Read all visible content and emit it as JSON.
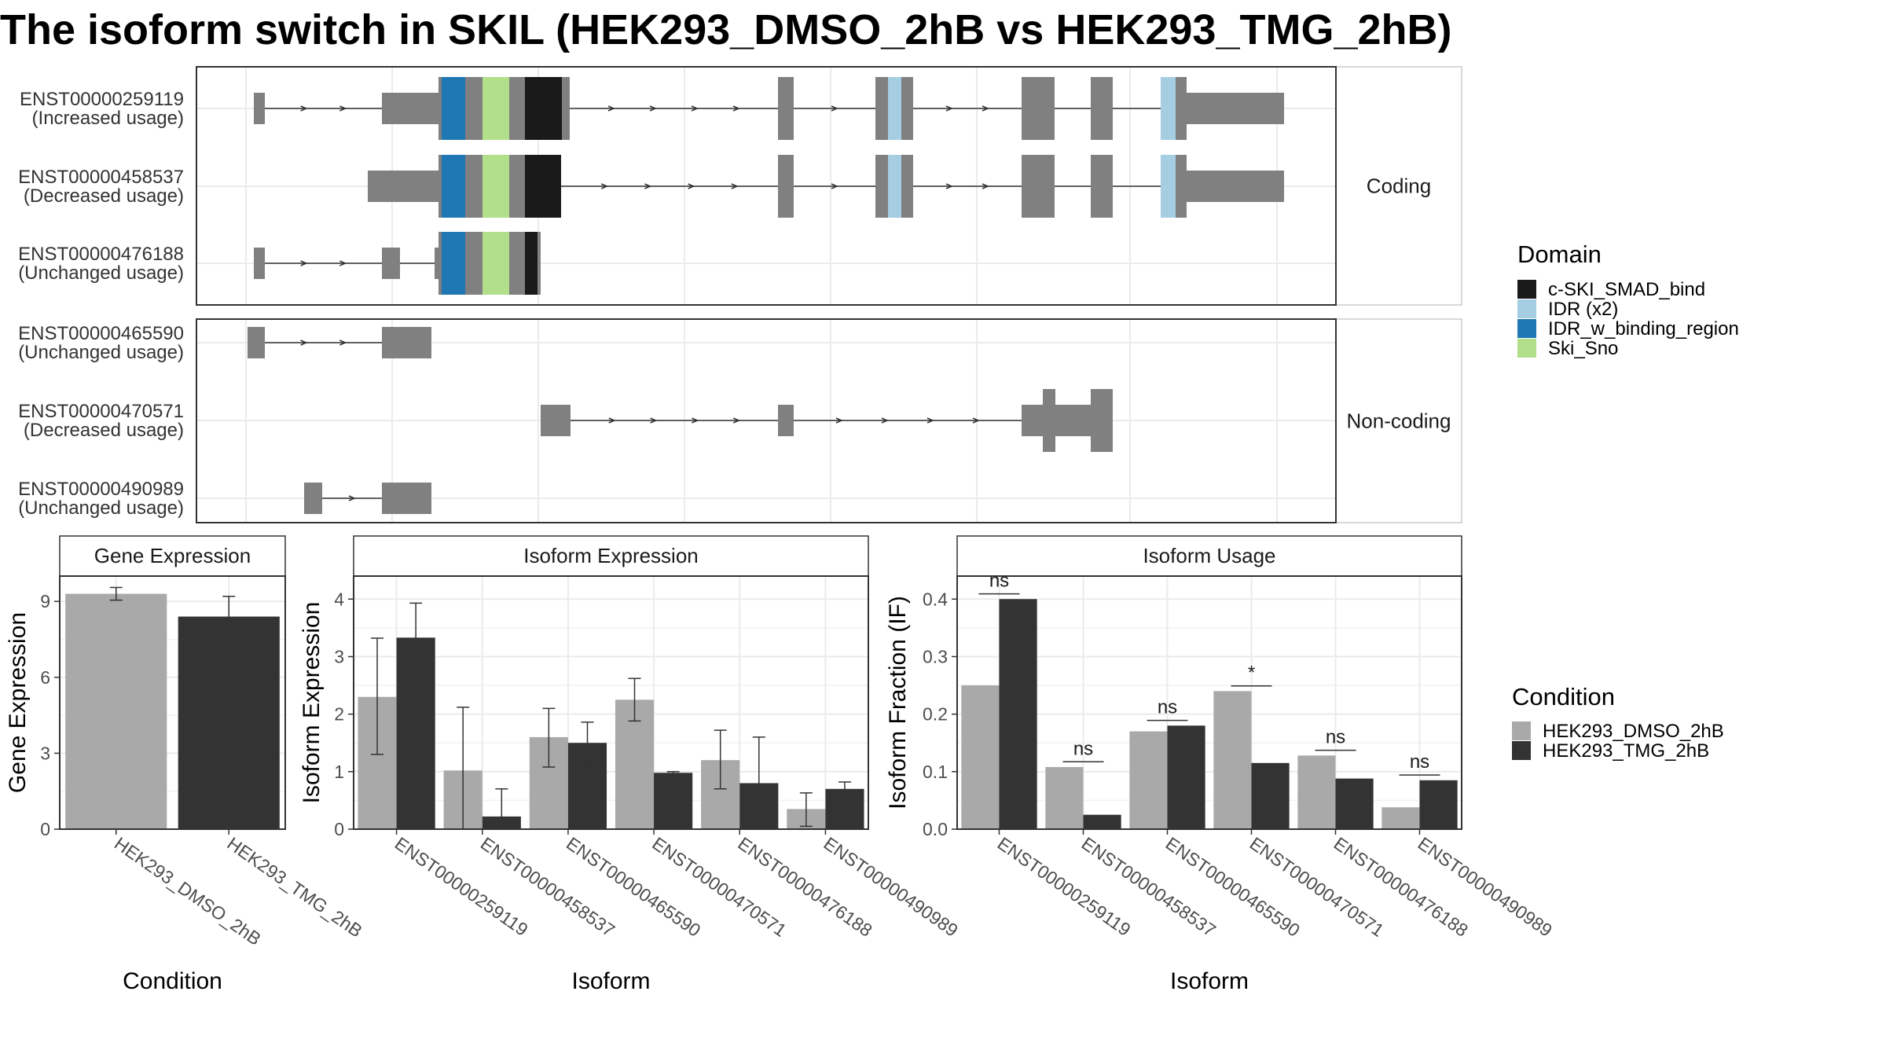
{
  "title": "The isoform switch in SKIL (HEK293_DMSO_2hB vs HEK293_TMG_2hB)",
  "colors": {
    "c-SKI_SMAD_bind": "#1a1a1a",
    "IDR (x2)": "#a6cee3",
    "IDR_w_binding_region": "#1f78b4",
    "Ski_Sno": "#b2df8a",
    "exon": "#808080",
    "HEK293_DMSO_2hB": "#a9a9a9",
    "HEK293_TMG_2hB": "#333333"
  },
  "legends": {
    "domain": {
      "title": "Domain",
      "items": [
        "c-SKI_SMAD_bind",
        "IDR (x2)",
        "IDR_w_binding_region",
        "Ski_Sno"
      ]
    },
    "condition": {
      "title": "Condition",
      "items": [
        "HEK293_DMSO_2hB",
        "HEK293_TMG_2hB"
      ]
    }
  },
  "chart_data": [
    {
      "type": "gene-structure",
      "facets": [
        "Coding",
        "Non-coding"
      ],
      "transcripts": [
        {
          "id": "ENST00000259119",
          "usage": "(Increased usage)",
          "facet": "Coding"
        },
        {
          "id": "ENST00000458537",
          "usage": "(Decreased usage)",
          "facet": "Coding"
        },
        {
          "id": "ENST00000476188",
          "usage": "(Unchanged usage)",
          "facet": "Coding"
        },
        {
          "id": "ENST00000465590",
          "usage": "(Unchanged usage)",
          "facet": "Non-coding"
        },
        {
          "id": "ENST00000470571",
          "usage": "(Decreased usage)",
          "facet": "Non-coding"
        },
        {
          "id": "ENST00000490989",
          "usage": "(Unchanged usage)",
          "facet": "Non-coding"
        }
      ]
    },
    {
      "type": "bar",
      "title": "Gene Expression",
      "xlabel": "Condition",
      "ylabel": "Gene Expression",
      "categories": [
        "HEK293_DMSO_2hB",
        "HEK293_TMG_2hB"
      ],
      "values": [
        9.3,
        8.4
      ],
      "errors": [
        [
          9.05,
          9.55
        ],
        [
          7.6,
          9.2
        ]
      ],
      "ylim": [
        0,
        10
      ],
      "yticks": [
        0,
        3,
        6,
        9
      ]
    },
    {
      "type": "bar",
      "title": "Isoform Expression",
      "xlabel": "Isoform",
      "ylabel": "Isoform Expression",
      "categories": [
        "ENST00000259119",
        "ENST00000458537",
        "ENST00000465590",
        "ENST00000470571",
        "ENST00000476188",
        "ENST00000490989"
      ],
      "series": [
        {
          "name": "HEK293_DMSO_2hB",
          "values": [
            2.3,
            1.02,
            1.6,
            2.25,
            1.2,
            0.35
          ],
          "errors": [
            [
              1.3,
              3.32
            ],
            [
              0,
              2.12
            ],
            [
              1.08,
              2.1
            ],
            [
              1.88,
              2.62
            ],
            [
              0.7,
              1.72
            ],
            [
              0.05,
              0.63
            ]
          ]
        },
        {
          "name": "HEK293_TMG_2hB",
          "values": [
            3.33,
            0.22,
            1.5,
            0.98,
            0.8,
            0.7
          ],
          "errors": [
            [
              2.75,
              3.93
            ],
            [
              0,
              0.7
            ],
            [
              1.14,
              1.86
            ],
            [
              0.96,
              1.0
            ],
            [
              0,
              1.6
            ],
            [
              0.58,
              0.82
            ]
          ]
        }
      ],
      "ylim": [
        0,
        4.4
      ],
      "yticks": [
        0,
        1,
        2,
        3,
        4
      ]
    },
    {
      "type": "bar",
      "title": "Isoform Usage",
      "xlabel": "Isoform",
      "ylabel": "Isoform Fraction (IF)",
      "categories": [
        "ENST00000259119",
        "ENST00000458537",
        "ENST00000465590",
        "ENST00000470571",
        "ENST00000476188",
        "ENST00000490989"
      ],
      "series": [
        {
          "name": "HEK293_DMSO_2hB",
          "values": [
            0.25,
            0.108,
            0.17,
            0.24,
            0.128,
            0.038
          ]
        },
        {
          "name": "HEK293_TMG_2hB",
          "values": [
            0.4,
            0.025,
            0.18,
            0.115,
            0.088,
            0.085
          ]
        }
      ],
      "significance": [
        "ns",
        "ns",
        "ns",
        "*",
        "ns",
        "ns"
      ],
      "ylim": [
        0,
        0.44
      ],
      "yticks": [
        0.0,
        0.1,
        0.2,
        0.3,
        0.4
      ]
    }
  ]
}
